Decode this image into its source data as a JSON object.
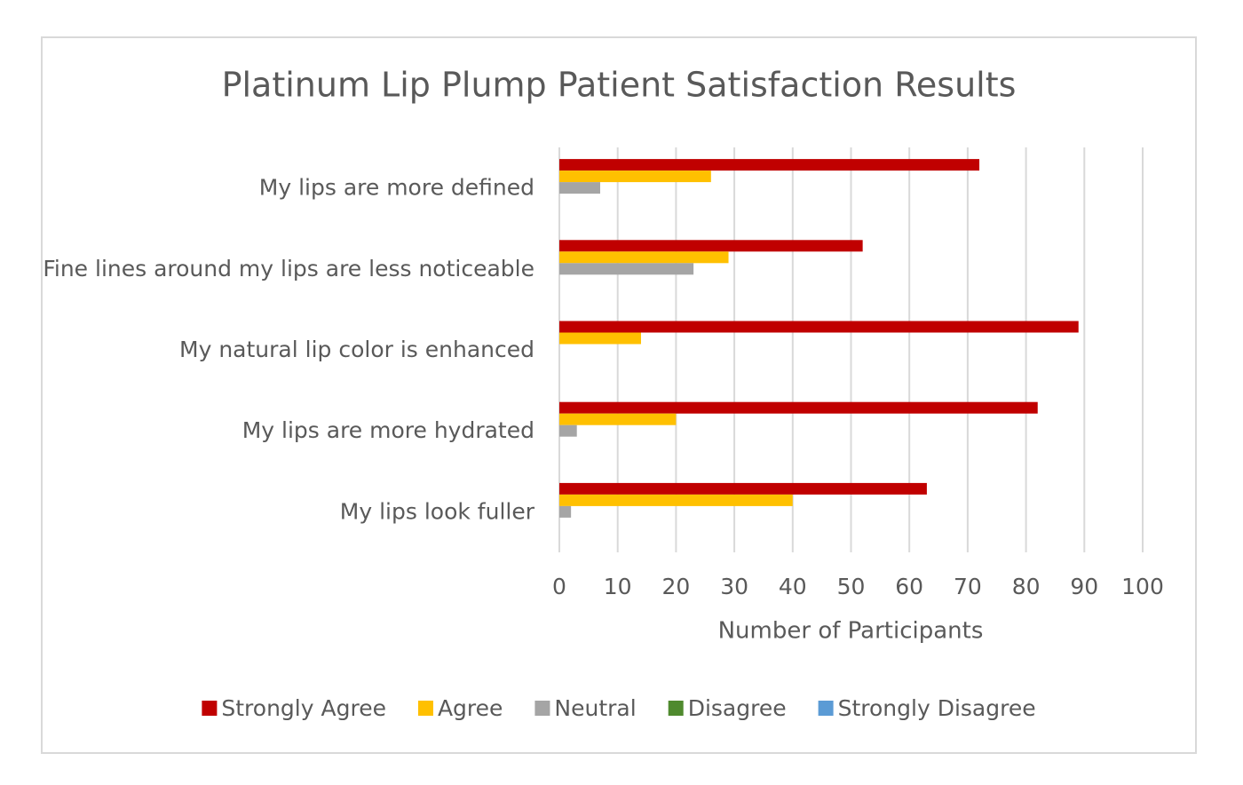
{
  "chart_data": {
    "type": "bar",
    "orientation": "horizontal",
    "title": "Platinum Lip Plump Patient Satisfaction Results",
    "x_label": "Number of Participants",
    "categories": [
      "My lips are more defined",
      "Fine lines around my lips are less noticeable",
      "My natural lip color is enhanced",
      "My lips are more hydrated",
      "My lips look fuller"
    ],
    "series": [
      {
        "name": "Strongly Agree",
        "color": "#c00000",
        "values": [
          72,
          52,
          89,
          82,
          63
        ]
      },
      {
        "name": "Agree",
        "color": "#ffc000",
        "values": [
          26,
          29,
          14,
          20,
          40
        ]
      },
      {
        "name": "Neutral",
        "color": "#a5a5a5",
        "values": [
          7,
          23,
          0,
          3,
          2
        ]
      },
      {
        "name": "Disagree",
        "color": "#4f8a2e",
        "values": [
          0,
          0,
          0,
          0,
          0
        ]
      },
      {
        "name": "Strongly Disagree",
        "color": "#5b9bd5",
        "values": [
          0,
          0,
          0,
          0,
          0
        ]
      }
    ],
    "xlim": [
      0,
      100
    ],
    "xticks": [
      0,
      10,
      20,
      30,
      40,
      50,
      60,
      70,
      80,
      90,
      100
    ],
    "grid": true,
    "legend": "bottom"
  }
}
